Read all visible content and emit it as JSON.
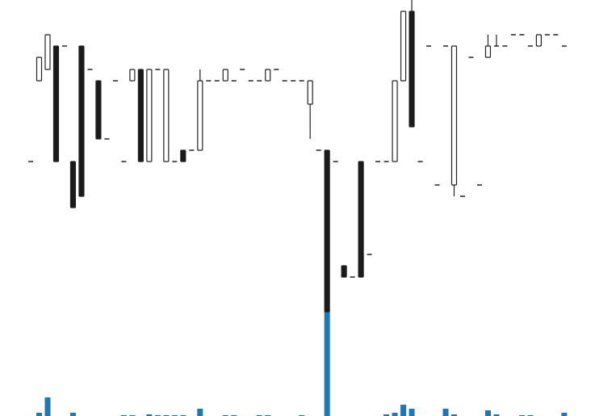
{
  "chart_data": {
    "type": "candlestick",
    "open": [
      320,
      420,
      434,
      463,
      463,
      320,
      463,
      434,
      420,
      348,
      420,
      320,
      420,
      434,
      320,
      434,
      320,
      320,
      334,
      334,
      334,
      420,
      420,
      420,
      420,
      434,
      420,
      420,
      420,
      434,
      420,
      420,
      420,
      391,
      334,
      334,
      320,
      191,
      177,
      320,
      205,
      320,
      320,
      320,
      420,
      506,
      320,
      463,
      291,
      463,
      291,
      277,
      449,
      291,
      449,
      463,
      463,
      477,
      477,
      463,
      463,
      477,
      477,
      463
    ],
    "high": [
      320,
      449,
      477,
      463,
      463,
      320,
      463,
      434,
      420,
      348,
      420,
      320,
      434,
      434,
      434,
      434,
      434,
      320,
      334,
      334,
      434,
      420,
      420,
      434,
      420,
      434,
      420,
      420,
      434,
      434,
      420,
      420,
      420,
      420,
      334,
      334,
      320,
      191,
      177,
      320,
      205,
      320,
      320,
      420,
      506,
      520,
      320,
      463,
      291,
      463,
      463,
      277,
      449,
      291,
      477,
      477,
      463,
      477,
      477,
      463,
      477,
      477,
      477,
      463
    ],
    "low": [
      320,
      420,
      434,
      320,
      463,
      263,
      277,
      434,
      348,
      348,
      420,
      320,
      420,
      320,
      320,
      434,
      320,
      320,
      320,
      334,
      334,
      420,
      420,
      420,
      420,
      434,
      420,
      420,
      420,
      434,
      420,
      420,
      420,
      348,
      334,
      134,
      320,
      177,
      177,
      177,
      205,
      320,
      320,
      320,
      420,
      363,
      320,
      463,
      291,
      463,
      277,
      277,
      449,
      291,
      449,
      463,
      463,
      477,
      477,
      463,
      463,
      477,
      477,
      463
    ],
    "close": [
      320,
      449,
      477,
      320,
      463,
      263,
      277,
      434,
      348,
      348,
      420,
      320,
      434,
      320,
      434,
      434,
      434,
      320,
      320,
      334,
      420,
      420,
      420,
      434,
      420,
      434,
      420,
      420,
      434,
      434,
      420,
      420,
      420,
      420,
      334,
      134,
      320,
      177,
      177,
      177,
      205,
      320,
      320,
      420,
      506,
      363,
      320,
      463,
      291,
      463,
      463,
      277,
      449,
      291,
      463,
      463,
      463,
      477,
      477,
      463,
      477,
      477,
      477,
      463
    ],
    "volume": [
      0,
      4,
      23,
      0,
      0,
      4,
      0,
      0,
      0,
      0,
      0,
      1,
      1,
      0,
      2,
      1,
      1,
      1,
      1,
      0,
      9,
      0,
      0,
      1,
      1,
      0,
      0,
      1,
      1,
      0,
      0,
      0,
      1,
      0,
      0,
      129,
      0,
      0,
      0,
      0,
      0,
      0,
      2,
      4,
      14,
      9,
      0,
      0,
      0,
      9,
      2,
      0,
      0,
      0,
      7,
      2,
      0,
      0,
      1,
      1,
      0,
      0,
      0,
      4
    ],
    "ylim": [
      5,
      520
    ],
    "volume_ylim": [
      0,
      130
    ],
    "up_color": "#ffffff",
    "down_color": "#1a1a1a",
    "outline_color": "#222222",
    "volume_color": "#1f77b4"
  }
}
